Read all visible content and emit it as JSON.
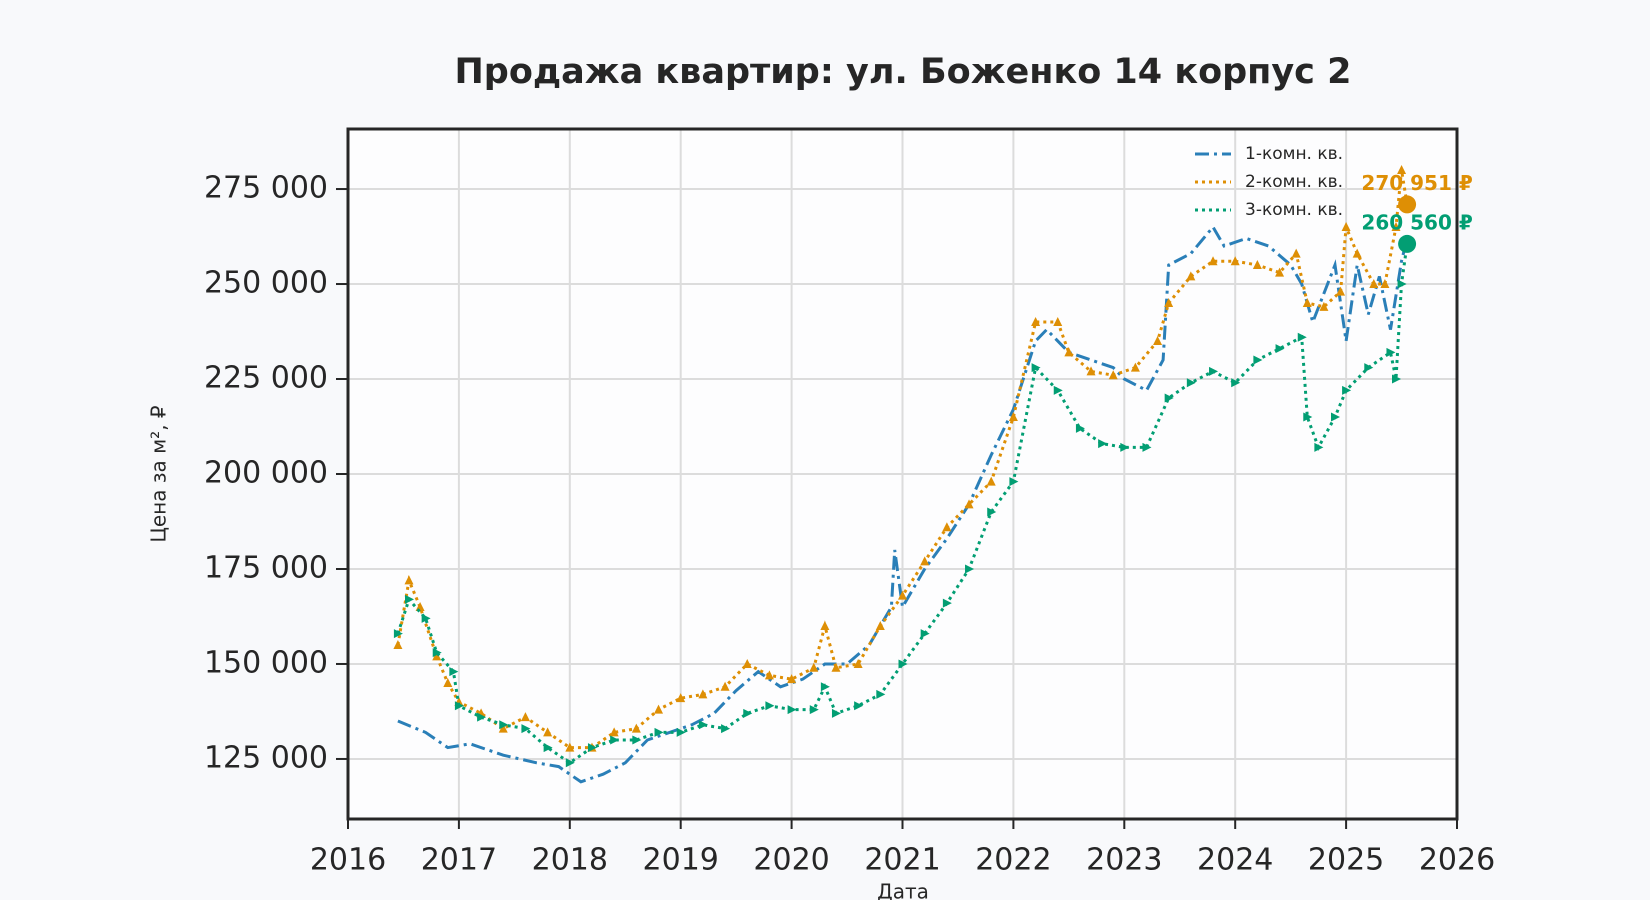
{
  "chart_data": {
    "type": "line",
    "title": "Продажа квартир: ул. Боженко 14 корпус 2",
    "xlabel": "Дата",
    "ylabel": "Цена за м², ₽",
    "xlim": [
      2016,
      2026
    ],
    "xticks": [
      2016,
      2017,
      2018,
      2019,
      2020,
      2021,
      2022,
      2023,
      2024,
      2025,
      2026
    ],
    "ylim": [
      109200,
      290800
    ],
    "yticks": [
      {
        "value": 125000,
        "label": "125 000"
      },
      {
        "value": 150000,
        "label": "150 000"
      },
      {
        "value": 175000,
        "label": "175 000"
      },
      {
        "value": 200000,
        "label": "200 000"
      },
      {
        "value": 225000,
        "label": "225 000"
      },
      {
        "value": 250000,
        "label": "250 000"
      },
      {
        "value": 275000,
        "label": "275 000"
      }
    ],
    "grid": true,
    "legend": "upper right",
    "series": [
      {
        "name": "1-комн. кв.",
        "color": "#2a7fb8",
        "dash": "dashdot",
        "marker": "none",
        "x": [
          2016.45,
          2016.7,
          2016.9,
          2017.1,
          2017.4,
          2017.7,
          2017.9,
          2018.1,
          2018.3,
          2018.5,
          2018.7,
          2018.9,
          2019.1,
          2019.3,
          2019.5,
          2019.7,
          2019.9,
          2020.1,
          2020.3,
          2020.5,
          2020.7,
          2020.9,
          2020.93,
          2021.0,
          2021.2,
          2021.4,
          2021.6,
          2021.8,
          2022.0,
          2022.2,
          2022.3,
          2022.5,
          2022.7,
          2022.9,
          2023.0,
          2023.2,
          2023.35,
          2023.4,
          2023.6,
          2023.8,
          2023.9,
          2024.1,
          2024.3,
          2024.5,
          2024.6,
          2024.7,
          2024.9,
          2025.0,
          2025.1,
          2025.2,
          2025.3,
          2025.4,
          2025.5,
          2025.55
        ],
        "values": [
          135000,
          132000,
          128000,
          129000,
          126000,
          124000,
          123000,
          119000,
          121000,
          124000,
          130000,
          132000,
          134000,
          137000,
          143000,
          148000,
          144000,
          146000,
          150000,
          150000,
          155000,
          165000,
          180000,
          165000,
          175000,
          183000,
          192000,
          205000,
          217000,
          235000,
          238000,
          232000,
          230000,
          228000,
          225000,
          222000,
          230000,
          255000,
          258000,
          265000,
          260000,
          262000,
          260000,
          255000,
          250000,
          240000,
          255000,
          235000,
          255000,
          242000,
          252000,
          238000,
          256000,
          262000
        ]
      },
      {
        "name": "2-комн. кв.",
        "color": "#de8f05",
        "dash": "dotted",
        "marker": "triangle",
        "x": [
          2016.45,
          2016.55,
          2016.65,
          2016.8,
          2016.9,
          2017.0,
          2017.2,
          2017.4,
          2017.6,
          2017.8,
          2018.0,
          2018.2,
          2018.4,
          2018.6,
          2018.8,
          2019.0,
          2019.2,
          2019.4,
          2019.6,
          2019.8,
          2020.0,
          2020.2,
          2020.3,
          2020.4,
          2020.6,
          2020.8,
          2021.0,
          2021.2,
          2021.4,
          2021.6,
          2021.8,
          2022.0,
          2022.2,
          2022.4,
          2022.5,
          2022.7,
          2022.9,
          2023.1,
          2023.3,
          2023.4,
          2023.6,
          2023.8,
          2024.0,
          2024.2,
          2024.4,
          2024.55,
          2024.65,
          2024.8,
          2024.95,
          2025.0,
          2025.1,
          2025.25,
          2025.35,
          2025.45,
          2025.5,
          2025.55
        ],
        "values": [
          155000,
          172000,
          165000,
          152000,
          145000,
          140000,
          137000,
          133000,
          136000,
          132000,
          128000,
          128000,
          132000,
          133000,
          138000,
          141000,
          142000,
          144000,
          150000,
          147000,
          146000,
          149000,
          160000,
          149000,
          150000,
          160000,
          168000,
          177000,
          186000,
          192000,
          198000,
          215000,
          240000,
          240000,
          232000,
          227000,
          226000,
          228000,
          235000,
          245000,
          252000,
          256000,
          256000,
          255000,
          253000,
          258000,
          245000,
          244000,
          248000,
          265000,
          258000,
          250000,
          250000,
          265000,
          280000,
          271000
        ]
      },
      {
        "name": "3-комн. кв.",
        "color": "#029e73",
        "dash": "dotted",
        "marker": "arrow",
        "x": [
          2016.45,
          2016.55,
          2016.7,
          2016.8,
          2016.95,
          2017.0,
          2017.2,
          2017.4,
          2017.6,
          2017.8,
          2018.0,
          2018.2,
          2018.4,
          2018.6,
          2018.8,
          2019.0,
          2019.2,
          2019.4,
          2019.6,
          2019.8,
          2020.0,
          2020.2,
          2020.3,
          2020.4,
          2020.6,
          2020.8,
          2021.0,
          2021.2,
          2021.4,
          2021.6,
          2021.8,
          2022.0,
          2022.2,
          2022.4,
          2022.6,
          2022.8,
          2023.0,
          2023.2,
          2023.4,
          2023.6,
          2023.8,
          2024.0,
          2024.2,
          2024.4,
          2024.6,
          2024.65,
          2024.75,
          2024.9,
          2025.0,
          2025.2,
          2025.4,
          2025.45,
          2025.5,
          2025.55
        ],
        "values": [
          158000,
          167000,
          162000,
          153000,
          148000,
          139000,
          136000,
          134000,
          133000,
          128000,
          124000,
          128000,
          130000,
          130000,
          132000,
          132000,
          134000,
          133000,
          137000,
          139000,
          138000,
          138000,
          144000,
          137000,
          139000,
          142000,
          150000,
          158000,
          166000,
          175000,
          190000,
          198000,
          228000,
          222000,
          212000,
          208000,
          207000,
          207000,
          220000,
          224000,
          227000,
          224000,
          230000,
          233000,
          236000,
          215000,
          207000,
          215000,
          222000,
          228000,
          232000,
          225000,
          250000,
          260560
        ]
      }
    ],
    "annotations": [
      {
        "text": "270 951 ₽",
        "x": 2025.55,
        "value": 270951,
        "color": "#de8f05"
      },
      {
        "text": "260 560 ₽",
        "x": 2025.55,
        "value": 260560,
        "color": "#029e73"
      }
    ]
  }
}
